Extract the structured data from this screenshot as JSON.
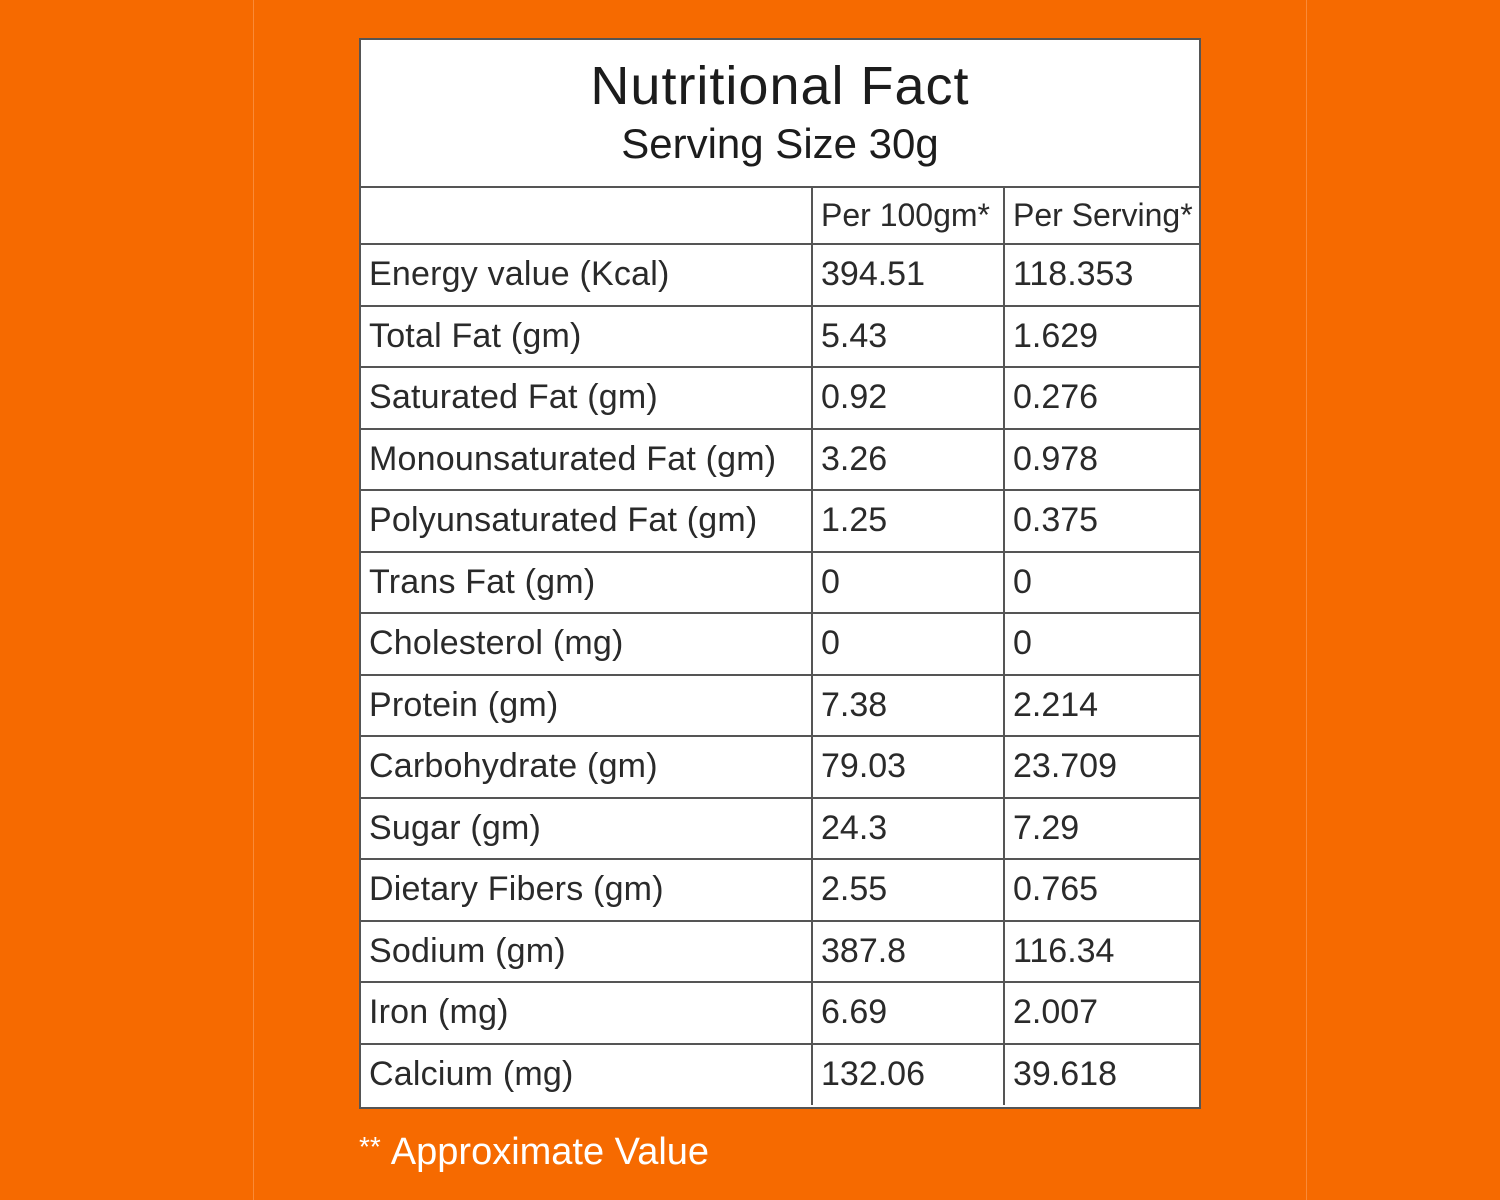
{
  "colors": {
    "background": "#f66a00",
    "guide_lines": "#ffb27a",
    "card": "#ffffff",
    "border": "#555555",
    "text": "#2a2a2a",
    "footnote_text": "#ffffff"
  },
  "label": {
    "title": "Nutritional Fact",
    "subtitle": "Serving Size 30g"
  },
  "table": {
    "headers": [
      "",
      "Per 100gm*",
      "Per Serving*"
    ],
    "rows": [
      {
        "nutrient": "Energy value  (Kcal)",
        "per_100gm": "394.51",
        "per_serving": "118.353"
      },
      {
        "nutrient": "Total Fat (gm)",
        "per_100gm": "5.43",
        "per_serving": "1.629"
      },
      {
        "nutrient": "Saturated Fat (gm)",
        "per_100gm": "0.92",
        "per_serving": "0.276"
      },
      {
        "nutrient": "Monounsaturated Fat (gm)",
        "per_100gm": "3.26",
        "per_serving": "0.978"
      },
      {
        "nutrient": "Polyunsaturated Fat (gm)",
        "per_100gm": "1.25",
        "per_serving": "0.375"
      },
      {
        "nutrient": "Trans Fat (gm)",
        "per_100gm": "0",
        "per_serving": "0"
      },
      {
        "nutrient": "Cholesterol (mg)",
        "per_100gm": "0",
        "per_serving": "0"
      },
      {
        "nutrient": "Protein (gm)",
        "per_100gm": "7.38",
        "per_serving": "2.214"
      },
      {
        "nutrient": "Carbohydrate (gm)",
        "per_100gm": "79.03",
        "per_serving": "23.709"
      },
      {
        "nutrient": "Sugar (gm)",
        "per_100gm": "24.3",
        "per_serving": "7.29"
      },
      {
        "nutrient": "Dietary Fibers (gm)",
        "per_100gm": "2.55",
        "per_serving": "0.765"
      },
      {
        "nutrient": "Sodium (gm)",
        "per_100gm": "387.8",
        "per_serving": "116.34"
      },
      {
        "nutrient": "Iron (mg)",
        "per_100gm": "6.69",
        "per_serving": "2.007"
      },
      {
        "nutrient": "Calcium (mg)",
        "per_100gm": "132.06",
        "per_serving": "39.618"
      }
    ]
  },
  "footnote": {
    "marker": "**",
    "text": "Approximate Value"
  }
}
